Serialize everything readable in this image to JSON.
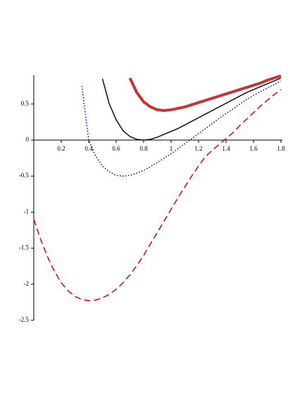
{
  "chart_data": {
    "type": "line",
    "x": [
      0,
      0.05,
      0.1,
      0.15,
      0.2,
      0.25,
      0.3,
      0.35,
      0.4,
      0.45,
      0.5,
      0.55,
      0.6,
      0.65,
      0.7,
      0.75,
      0.8,
      0.85,
      0.9,
      0.95,
      1.0,
      1.05,
      1.1,
      1.15,
      1.2,
      1.25,
      1.3,
      1.35,
      1.4,
      1.45,
      1.5,
      1.55,
      1.6,
      1.65,
      1.7,
      1.75,
      1.8
    ],
    "series": [
      {
        "color": "#e00000",
        "line_style": "dashed",
        "values": [
          -1.1,
          -1.38,
          -1.62,
          -1.82,
          -1.98,
          -2.09,
          -2.17,
          -2.21,
          -2.23,
          -2.22,
          -2.19,
          -2.14,
          -2.07,
          -1.98,
          -1.87,
          -1.74,
          -1.6,
          -1.44,
          -1.28,
          -1.12,
          -0.96,
          -0.8,
          -0.65,
          -0.5,
          -0.36,
          -0.23,
          -0.14,
          -0.06,
          0.02,
          0.1,
          0.2,
          0.29,
          0.38,
          0.47,
          0.55,
          0.63,
          0.7
        ]
      },
      {
        "color": "#0000cc",
        "line_style": "dotted",
        "values": [
          null,
          null,
          null,
          null,
          null,
          null,
          null,
          0.75,
          0.0,
          -0.22,
          -0.36,
          -0.44,
          -0.49,
          -0.5,
          -0.49,
          -0.46,
          -0.42,
          -0.37,
          -0.31,
          -0.25,
          -0.19,
          -0.12,
          -0.05,
          0.02,
          0.09,
          0.16,
          0.23,
          0.3,
          0.37,
          0.43,
          0.5,
          0.56,
          0.62,
          0.67,
          0.72,
          0.77,
          0.82
        ]
      },
      {
        "color": "#000000",
        "line_style": "solid",
        "values": [
          null,
          null,
          null,
          null,
          null,
          null,
          null,
          null,
          null,
          null,
          0.85,
          0.5,
          0.28,
          0.13,
          0.05,
          0.01,
          0.0,
          0.01,
          0.04,
          0.08,
          0.12,
          0.16,
          0.21,
          0.26,
          0.31,
          0.36,
          0.41,
          0.46,
          0.51,
          0.56,
          0.61,
          0.66,
          0.7,
          0.74,
          0.78,
          0.82,
          0.86
        ]
      },
      {
        "color": "#c83232",
        "line_style": "thick",
        "values": [
          null,
          null,
          null,
          null,
          null,
          null,
          null,
          null,
          null,
          null,
          null,
          null,
          null,
          null,
          0.86,
          0.66,
          0.53,
          0.46,
          0.42,
          0.41,
          0.42,
          0.44,
          0.46,
          0.49,
          0.52,
          0.55,
          0.58,
          0.61,
          0.64,
          0.67,
          0.7,
          0.73,
          0.76,
          0.79,
          0.83,
          0.86,
          0.89
        ]
      }
    ],
    "xlim": [
      0,
      1.8
    ],
    "ylim": [
      -2.5,
      0.9
    ],
    "xticks": [
      0.2,
      0.4,
      0.6,
      0.8,
      1,
      1.2,
      1.4,
      1.6,
      1.8
    ],
    "yticks": [
      -2.5,
      -2,
      -1.5,
      -1,
      -0.5,
      0,
      0.5
    ],
    "grid": false
  }
}
